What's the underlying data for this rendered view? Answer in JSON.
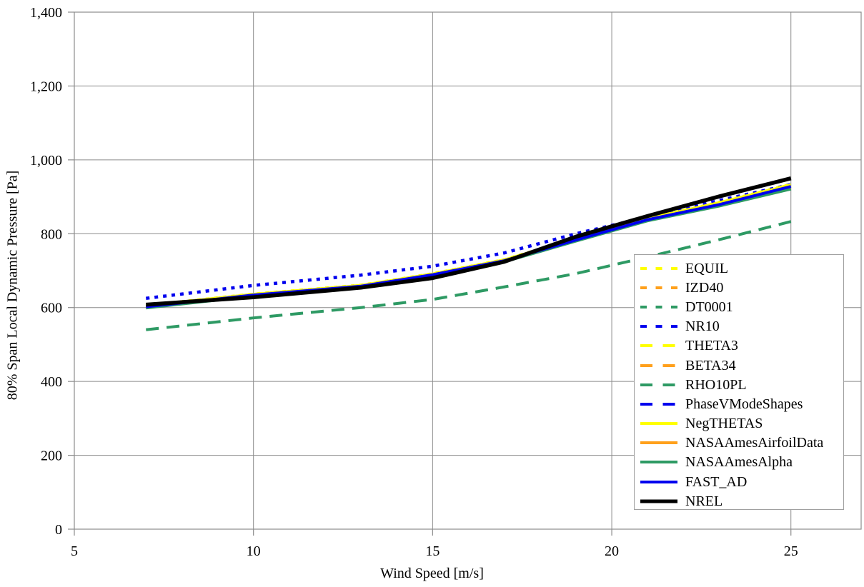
{
  "chart_data": {
    "type": "line",
    "title": "",
    "xlabel": "Wind Speed [m/s]",
    "ylabel": "80% Span Local Dynamic Pressure [Pa]",
    "xlim": [
      5,
      26.96
    ],
    "ylim": [
      0,
      1400
    ],
    "grid": true,
    "legend_position": "inside-right",
    "xticks": {
      "values": [
        5,
        10,
        15,
        20,
        25
      ],
      "labels": [
        "5",
        "10",
        "15",
        "20",
        "25"
      ]
    },
    "yticks": {
      "values": [
        0,
        200,
        400,
        600,
        800,
        1000,
        1200,
        1400
      ],
      "labels": [
        "0",
        "200",
        "400",
        "600",
        "800",
        "1,000",
        "1,200",
        "1,400"
      ]
    },
    "x": [
      7,
      10,
      13,
      15,
      17,
      19,
      21,
      23,
      25
    ],
    "series": [
      {
        "name": "EQUIL",
        "color": "#FFFF00",
        "style": "dotted",
        "width": 4,
        "values": [
          606,
          637,
          661,
          692,
          730,
          787,
          842,
          885,
          934
        ]
      },
      {
        "name": "IZD40",
        "color": "#FFA01B",
        "style": "dotted",
        "width": 4,
        "values": [
          601,
          633,
          657,
          688,
          726,
          782,
          837,
          877,
          924
        ]
      },
      {
        "name": "DT0001",
        "color": "#2E9A64",
        "style": "dotted",
        "width": 4,
        "values": [
          600,
          632,
          656,
          687,
          725,
          781,
          836,
          876,
          922
        ]
      },
      {
        "name": "NR10",
        "color": "#0000EE",
        "style": "dotted",
        "width": 4.5,
        "values": [
          625,
          660,
          688,
          712,
          748,
          800,
          845,
          890,
          933
        ]
      },
      {
        "name": "THETA3",
        "color": "#FFFF00",
        "style": "dashed",
        "width": 4,
        "values": [
          605,
          636,
          660,
          691,
          729,
          786,
          841,
          884,
          933
        ]
      },
      {
        "name": "BETA34",
        "color": "#FFA01B",
        "style": "dashed",
        "width": 4,
        "values": [
          601,
          633,
          657,
          688,
          726,
          782,
          837,
          877,
          924
        ]
      },
      {
        "name": "RHO10PL",
        "color": "#2E9A64",
        "style": "dashed",
        "width": 4,
        "values": [
          540,
          572,
          600,
          622,
          656,
          692,
          737,
          784,
          833
        ]
      },
      {
        "name": "PhaseVModeShapes",
        "color": "#0000EE",
        "style": "dashed",
        "width": 4,
        "values": [
          603,
          635,
          659,
          690,
          728,
          784,
          839,
          880,
          929
        ]
      },
      {
        "name": "NegTHETAS",
        "color": "#FFFF00",
        "style": "solid",
        "width": 4,
        "values": [
          605,
          636,
          660,
          691,
          729,
          786,
          841,
          884,
          932
        ]
      },
      {
        "name": "NASAAmesAirfoilData",
        "color": "#FFA01B",
        "style": "solid",
        "width": 4,
        "values": [
          600,
          632,
          656,
          687,
          725,
          781,
          836,
          876,
          923
        ]
      },
      {
        "name": "NASAAmesAlpha",
        "color": "#2E9A64",
        "style": "solid",
        "width": 4,
        "values": [
          599,
          631,
          655,
          686,
          724,
          780,
          835,
          875,
          921
        ]
      },
      {
        "name": "FAST_AD",
        "color": "#0000EE",
        "style": "solid",
        "width": 4,
        "values": [
          602,
          634,
          658,
          689,
          727,
          783,
          838,
          879,
          928
        ]
      },
      {
        "name": "NREL",
        "color": "#000000",
        "style": "solid",
        "width": 5.5,
        "values": [
          608,
          628,
          654,
          680,
          724,
          792,
          848,
          901,
          950
        ]
      }
    ]
  },
  "colors": {
    "background": "#FFFFFF",
    "gridline": "#8C8C8C",
    "plot_border": "#8C8C8C",
    "tick": "#8C8C8C",
    "legend_border": "#A0A0A0",
    "text": "#000000"
  }
}
